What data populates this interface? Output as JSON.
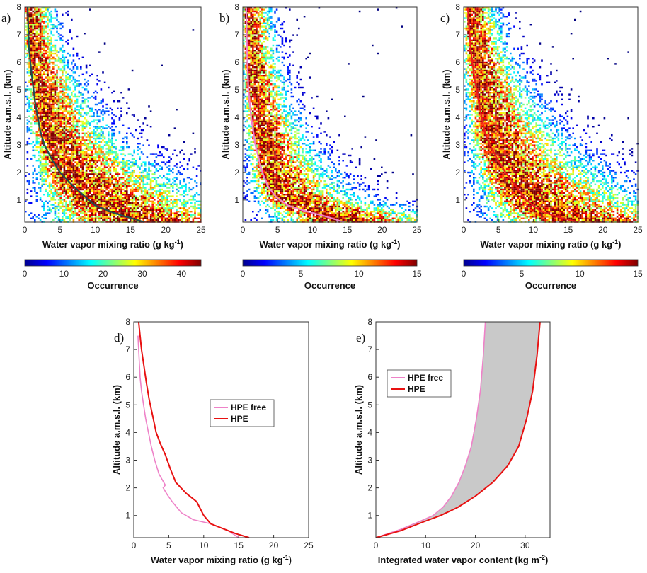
{
  "chart_data": [
    {
      "type": "heatmap",
      "panel_label": "a)",
      "xlabel": "Water vapor mixing ratio (g kg",
      "xlabel_sup": "-1",
      "xlabel_end": ")",
      "ylabel": "Altitude a.m.s.l. (km)",
      "xlim": [
        0,
        25
      ],
      "ylim": [
        0.2,
        8
      ],
      "xticks": [
        0,
        5,
        10,
        15,
        20,
        25
      ],
      "yticks": [
        1,
        2,
        3,
        4,
        5,
        6,
        7,
        8
      ],
      "colorbar": {
        "label": "Occurrence",
        "range": [
          0,
          45
        ],
        "ticks": [
          0,
          10,
          20,
          30,
          40
        ]
      },
      "mean_profile": {
        "color": "#1f4f4f",
        "x": [
          17.0,
          13.0,
          10.0,
          8.2,
          6.5,
          5.0,
          3.8,
          2.8,
          2.2,
          1.5,
          1.0,
          0.6,
          0.4
        ],
        "y": [
          0.2,
          0.5,
          0.8,
          1.2,
          1.6,
          2.0,
          2.5,
          3.0,
          3.5,
          4.5,
          5.5,
          6.5,
          8.0
        ]
      },
      "spread": {
        "x": [
          17.0,
          13.0,
          10.0,
          8.0,
          6.0,
          4.5,
          3.5,
          2.5,
          1.7,
          1.0,
          0.6,
          0.4
        ],
        "y": [
          0.2,
          0.5,
          0.8,
          1.2,
          1.8,
          2.4,
          3.0,
          3.8,
          5.0,
          6.0,
          7.0,
          8.0
        ],
        "left": [
          0.55,
          0.5,
          0.45,
          0.45,
          0.45,
          0.4,
          0.4,
          0.4,
          0.4,
          0.4,
          0.4,
          0.5
        ],
        "right": [
          1.35,
          1.6,
          1.9,
          2.2,
          2.5,
          2.7,
          2.8,
          3.0,
          3.2,
          3.6,
          4.0,
          4.5
        ]
      }
    },
    {
      "type": "heatmap",
      "panel_label": "b)",
      "xlabel": "Water vapor mixing ratio (g kg",
      "xlabel_sup": "-1",
      "xlabel_end": ")",
      "ylabel": "Altitude a.m.s.l. (km)",
      "xlim": [
        0,
        25
      ],
      "ylim": [
        0.2,
        8
      ],
      "xticks": [
        0,
        5,
        10,
        15,
        20,
        25
      ],
      "yticks": [
        1,
        2,
        3,
        4,
        5,
        6,
        7,
        8
      ],
      "colorbar": {
        "label": "Occurrence",
        "range": [
          0,
          15
        ],
        "ticks": [
          0,
          5,
          10,
          15
        ]
      },
      "mean_profile": {
        "color": "#f07fc8",
        "x": [
          14.5,
          12.0,
          9.0,
          6.5,
          4.8,
          3.6,
          2.8,
          2.3,
          1.8,
          1.2,
          0.8,
          0.6,
          0.5
        ],
        "y": [
          0.2,
          0.4,
          0.6,
          0.8,
          1.1,
          1.5,
          2.0,
          2.5,
          3.0,
          4.0,
          5.0,
          6.5,
          8.0
        ]
      },
      "spread": {
        "x": [
          14.0,
          11.0,
          7.5,
          5.0,
          3.5,
          2.5,
          1.5,
          0.8,
          0.6
        ],
        "y": [
          0.2,
          0.5,
          0.8,
          1.2,
          2.0,
          3.0,
          4.5,
          6.5,
          8.0
        ],
        "left": [
          0.45,
          0.4,
          0.4,
          0.4,
          0.4,
          0.4,
          0.4,
          0.5,
          0.5
        ],
        "right": [
          1.25,
          1.5,
          1.8,
          2.1,
          2.3,
          2.4,
          2.6,
          2.8,
          3.0
        ]
      }
    },
    {
      "type": "heatmap",
      "panel_label": "c)",
      "xlabel": "Water vapor mixing ratio (g kg",
      "xlabel_sup": "-1",
      "xlabel_end": ")",
      "ylabel": "Altitude a.m.s.l. (km)",
      "xlim": [
        0,
        25
      ],
      "ylim": [
        0.2,
        8
      ],
      "xticks": [
        0,
        5,
        10,
        15,
        20,
        25
      ],
      "yticks": [
        1,
        2,
        3,
        4,
        5,
        6,
        7,
        8
      ],
      "colorbar": {
        "label": "Occurrence",
        "range": [
          0,
          15
        ],
        "ticks": [
          0,
          5,
          10,
          15
        ]
      },
      "mean_profile": {
        "color": "#ee1c1c",
        "x": [
          16.5,
          14.0,
          11.0,
          9.0,
          7.5,
          6.0,
          4.8,
          3.8,
          3.0,
          2.2,
          1.5,
          1.0,
          0.6
        ],
        "y": [
          0.2,
          0.35,
          0.6,
          1.0,
          1.5,
          2.0,
          2.5,
          3.0,
          3.5,
          4.5,
          5.5,
          6.5,
          8.0
        ]
      },
      "spread": {
        "x": [
          17.0,
          12.5,
          9.0,
          6.5,
          4.5,
          3.2,
          2.2,
          1.2,
          0.7
        ],
        "y": [
          0.2,
          0.5,
          1.0,
          1.8,
          2.6,
          3.6,
          4.8,
          6.5,
          8.0
        ],
        "left": [
          0.5,
          0.45,
          0.45,
          0.45,
          0.45,
          0.45,
          0.45,
          0.5,
          0.5
        ],
        "right": [
          1.3,
          1.6,
          1.9,
          2.2,
          2.5,
          2.7,
          2.9,
          3.1,
          3.3
        ]
      }
    },
    {
      "type": "line",
      "panel_label": "d)",
      "xlabel": "Water vapor mixing ratio (g kg",
      "xlabel_sup": "-1",
      "xlabel_end": ")",
      "ylabel": "Altitude a.m.s.l. (km)",
      "xlim": [
        0,
        25
      ],
      "ylim": [
        0.2,
        8
      ],
      "xticks": [
        0,
        5,
        10,
        15,
        20,
        25
      ],
      "yticks": [
        1,
        2,
        3,
        4,
        5,
        6,
        7,
        8
      ],
      "legend": {
        "placement": "center-right"
      },
      "series": [
        {
          "name": "HPE free",
          "color": "#ee82c8",
          "x": [
            15.0,
            13.5,
            11.0,
            8.5,
            6.8,
            5.5,
            4.8,
            4.2,
            4.5,
            3.6,
            3.0,
            2.5,
            2.1,
            1.7,
            1.4,
            1.1,
            0.9,
            0.7,
            0.6
          ],
          "y": [
            0.2,
            0.45,
            0.7,
            0.85,
            1.1,
            1.5,
            1.75,
            2.0,
            2.1,
            2.5,
            3.0,
            3.5,
            4.0,
            4.5,
            5.0,
            5.5,
            6.0,
            7.0,
            7.5
          ]
        },
        {
          "name": "HPE",
          "color": "#e81111",
          "x": [
            16.5,
            14.5,
            11.0,
            10.0,
            9.0,
            7.5,
            6.0,
            5.2,
            4.5,
            3.8,
            3.2,
            2.7,
            2.2,
            1.8,
            1.4,
            1.1,
            0.9,
            0.7
          ],
          "y": [
            0.2,
            0.35,
            0.7,
            1.0,
            1.5,
            1.8,
            2.2,
            2.7,
            3.2,
            3.6,
            4.0,
            4.6,
            5.2,
            5.8,
            6.5,
            7.0,
            7.5,
            8.0
          ]
        }
      ]
    },
    {
      "type": "line",
      "panel_label": "e)",
      "xlabel": "Integrated water vapor content (kg m",
      "xlabel_sup": "-2",
      "xlabel_end": ")",
      "ylabel": "Altitude a.m.s.l. (km)",
      "xlim": [
        0,
        35
      ],
      "ylim": [
        0.2,
        8
      ],
      "xticks": [
        0,
        10,
        20,
        30
      ],
      "yticks": [
        1,
        2,
        3,
        4,
        5,
        6,
        7,
        8
      ],
      "legend": {
        "placement": "top-left"
      },
      "fill_between": {
        "color": "#c9c9c9"
      },
      "series": [
        {
          "name": "HPE free",
          "color": "#ee82c8",
          "x": [
            0,
            5,
            9,
            11.5,
            13.5,
            15.2,
            16.7,
            18.0,
            19.2,
            20.2,
            21.0,
            21.6,
            22.0
          ],
          "y": [
            0.2,
            0.5,
            0.8,
            1.0,
            1.3,
            1.7,
            2.2,
            2.8,
            3.5,
            4.5,
            5.5,
            6.8,
            8.0
          ]
        },
        {
          "name": "HPE",
          "color": "#e81111",
          "x": [
            0,
            5,
            10,
            13,
            16.5,
            20,
            23.5,
            26.5,
            28.7,
            30.3,
            31.5,
            32.4,
            33.0
          ],
          "y": [
            0.2,
            0.45,
            0.8,
            1.0,
            1.3,
            1.7,
            2.2,
            2.8,
            3.5,
            4.5,
            5.5,
            6.8,
            8.0
          ]
        }
      ]
    }
  ]
}
